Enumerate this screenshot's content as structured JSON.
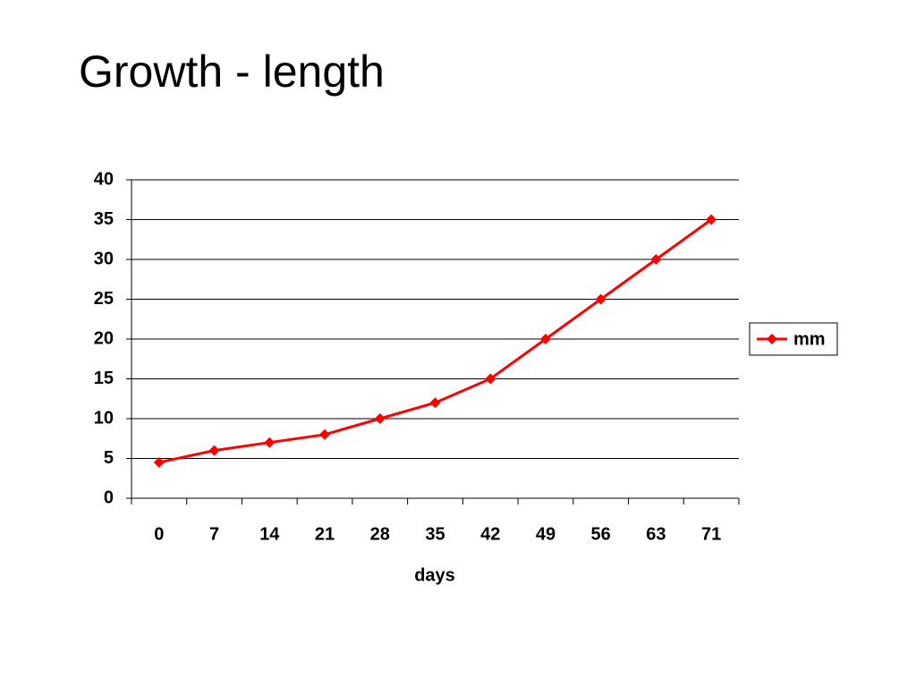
{
  "chart_data": {
    "type": "line",
    "title": "Growth - length",
    "x_label": "days",
    "categories": [
      "0",
      "7",
      "14",
      "21",
      "28",
      "35",
      "42",
      "49",
      "56",
      "63",
      "71"
    ],
    "series": [
      {
        "name": "mm",
        "color": "#ff0000",
        "values": [
          4.5,
          6,
          7,
          8,
          10,
          12,
          15,
          20,
          25,
          30,
          35
        ]
      }
    ],
    "ylim": [
      0,
      40
    ],
    "yticks": [
      0,
      5,
      10,
      15,
      20,
      25,
      30,
      35,
      40
    ],
    "grid": true,
    "legend": "right"
  }
}
